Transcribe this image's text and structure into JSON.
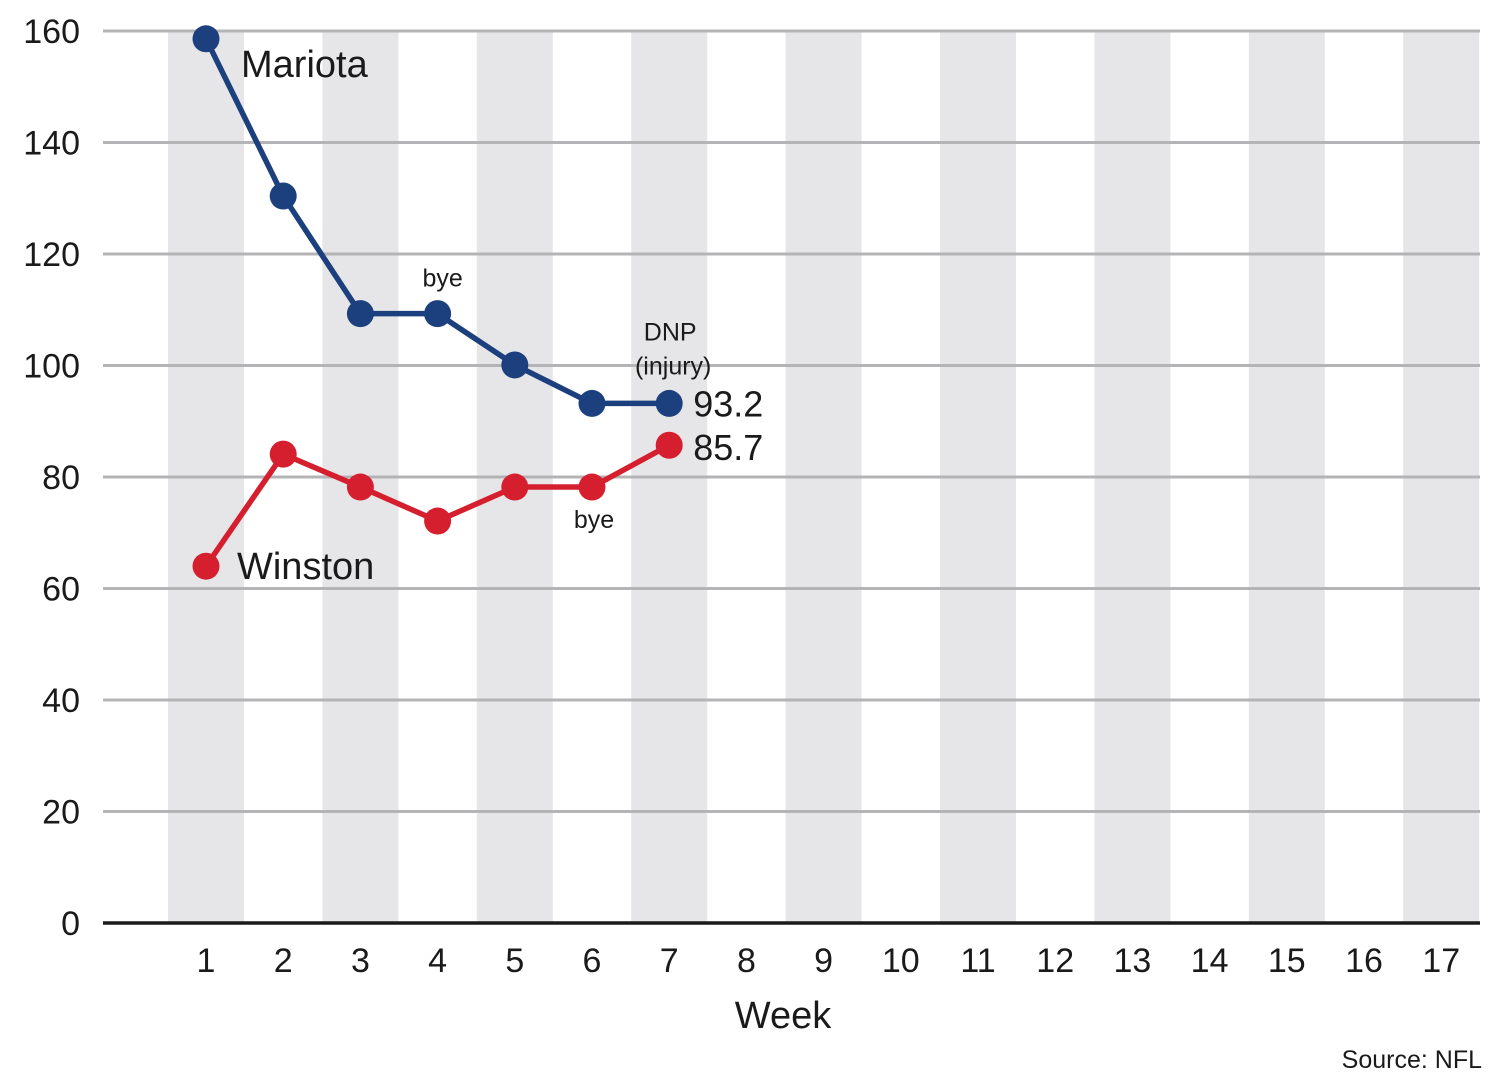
{
  "chart_data": {
    "type": "line",
    "xlabel": "Week",
    "ylabel": "",
    "source": "Source: NFL",
    "x": [
      1,
      2,
      3,
      4,
      5,
      6,
      7,
      8,
      9,
      10,
      11,
      12,
      13,
      14,
      15,
      16,
      17
    ],
    "xlim": [
      1,
      17
    ],
    "ylim": [
      0,
      160
    ],
    "yticks": [
      0,
      20,
      40,
      60,
      80,
      100,
      120,
      140,
      160
    ],
    "grid": true,
    "series": [
      {
        "name": "Mariota",
        "color": "#1c3f7e",
        "x": [
          1,
          2,
          3,
          4,
          5,
          6,
          7
        ],
        "values": [
          158.6,
          130.4,
          109.3,
          109.3,
          100.1,
          93.2,
          93.2
        ],
        "end_label": "93.2"
      },
      {
        "name": "Winston",
        "color": "#d61f2e",
        "x": [
          1,
          2,
          3,
          4,
          5,
          6,
          7
        ],
        "values": [
          64.0,
          84.1,
          78.2,
          72.1,
          78.2,
          78.2,
          85.7
        ],
        "end_label": "85.7"
      }
    ],
    "annotations": [
      {
        "id": "mariota-bye",
        "text": "bye",
        "x": 4,
        "y": 109.3
      },
      {
        "id": "winston-bye",
        "text": "bye",
        "x": 6,
        "y": 78.2
      },
      {
        "id": "dnp-line1",
        "text": "DNP",
        "x": 7,
        "y": 93.2
      },
      {
        "id": "dnp-line2",
        "text": "(injury)",
        "x": 7,
        "y": 93.2
      }
    ],
    "colors": {
      "band": "#e6e6e8",
      "grid": "#b4b4b6",
      "axis": "#1a1a1a"
    }
  }
}
